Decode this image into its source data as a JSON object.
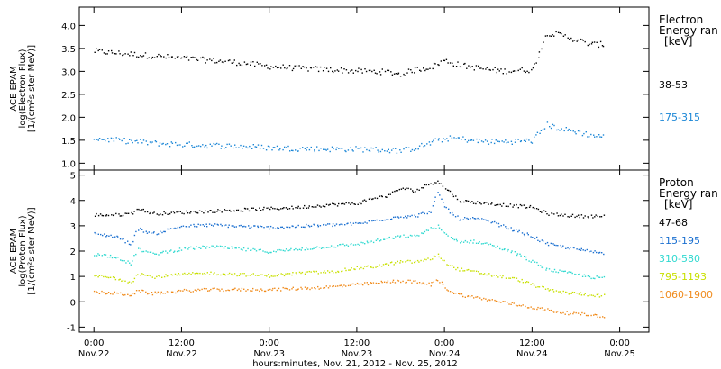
{
  "chart_data": [
    {
      "type": "scatter",
      "title": "",
      "ylabel_lines": [
        "ACE EPAM",
        "log(Electron Flux)",
        "[1/(cm²s ster MeV)]"
      ],
      "ylim": [
        0.85,
        4.4
      ],
      "yticks": [
        1.0,
        1.5,
        2.0,
        2.5,
        3.0,
        3.5,
        4.0
      ],
      "yticklabels": [
        "1.0",
        "1.5",
        "2.0",
        "2.5",
        "3.0",
        "3.5",
        "4.0"
      ],
      "legend": {
        "title_lines": [
          "Electron",
          "Energy ran",
          "[keV]"
        ],
        "placement": "right"
      },
      "series": [
        {
          "name": "38-53",
          "color": "#000000",
          "x": [
            0,
            4,
            8,
            12,
            16,
            20,
            24,
            28,
            32,
            36,
            40,
            42,
            44,
            46,
            48,
            50,
            52,
            54,
            56,
            60,
            62,
            64,
            66,
            68,
            70
          ],
          "y": [
            3.45,
            3.4,
            3.35,
            3.3,
            3.25,
            3.2,
            3.12,
            3.08,
            3.05,
            3.02,
            3.0,
            2.95,
            3.05,
            3.1,
            3.25,
            3.15,
            3.1,
            3.05,
            3.02,
            3.05,
            3.85,
            3.8,
            3.7,
            3.6,
            3.6
          ]
        },
        {
          "name": "175-315",
          "color": "#1a86d6",
          "x": [
            0,
            4,
            8,
            12,
            16,
            20,
            24,
            28,
            32,
            36,
            40,
            42,
            44,
            46,
            48,
            50,
            52,
            54,
            56,
            60,
            62,
            64,
            66,
            68,
            70
          ],
          "y": [
            1.55,
            1.5,
            1.45,
            1.42,
            1.4,
            1.38,
            1.35,
            1.33,
            1.32,
            1.32,
            1.3,
            1.28,
            1.35,
            1.45,
            1.55,
            1.55,
            1.5,
            1.48,
            1.48,
            1.5,
            1.85,
            1.75,
            1.7,
            1.62,
            1.58
          ]
        }
      ]
    },
    {
      "type": "scatter",
      "title": "",
      "ylabel_lines": [
        "ACE EPAM",
        "log(Proton Flux)",
        "[1/(cm²s ster MeV)]"
      ],
      "ylim": [
        -1.2,
        5.2
      ],
      "yticks": [
        -1,
        0,
        1,
        2,
        3,
        4,
        5
      ],
      "yticklabels": [
        "-1",
        "0",
        "1",
        "2",
        "3",
        "4",
        "5"
      ],
      "xlabel": "hours:minutes, Nov. 21, 2012 - Nov. 25, 2012",
      "xlim": [
        -2,
        76
      ],
      "xticks": [
        0,
        12,
        24,
        36,
        48,
        60,
        72
      ],
      "xticklabels": [
        [
          "0:00",
          "Nov.22"
        ],
        [
          "12:00",
          "Nov.22"
        ],
        [
          "0:00",
          "Nov.23"
        ],
        [
          "12:00",
          "Nov.23"
        ],
        [
          "0:00",
          "Nov.24"
        ],
        [
          "12:00",
          "Nov.24"
        ],
        [
          "0:00",
          "Nov.25"
        ]
      ],
      "legend": {
        "title_lines": [
          "Proton",
          "Energy ran",
          "[keV]"
        ],
        "placement": "right"
      },
      "series": [
        {
          "name": "47-68",
          "color": "#000000",
          "x": [
            0,
            3,
            5,
            6,
            8,
            12,
            16,
            20,
            24,
            28,
            32,
            36,
            38,
            40,
            42,
            44,
            46,
            47,
            48,
            49,
            50,
            52,
            54,
            56,
            58,
            60,
            62,
            64,
            66,
            68,
            70
          ],
          "y": [
            3.45,
            3.45,
            3.5,
            3.7,
            3.5,
            3.55,
            3.6,
            3.65,
            3.7,
            3.75,
            3.85,
            3.9,
            4.1,
            4.2,
            4.5,
            4.4,
            4.7,
            4.8,
            4.5,
            4.3,
            4.0,
            3.95,
            3.9,
            3.85,
            3.8,
            3.75,
            3.5,
            3.45,
            3.4,
            3.4,
            3.4
          ]
        },
        {
          "name": "115-195",
          "color": "#1a6fd0",
          "x": [
            0,
            3,
            5,
            6,
            8,
            12,
            16,
            20,
            24,
            28,
            32,
            36,
            38,
            40,
            42,
            44,
            46,
            47,
            48,
            49,
            50,
            52,
            54,
            56,
            58,
            60,
            62,
            64,
            66,
            68,
            70
          ],
          "y": [
            2.7,
            2.6,
            2.3,
            2.9,
            2.7,
            3.0,
            3.05,
            3.0,
            2.95,
            3.0,
            3.05,
            3.1,
            3.2,
            3.3,
            3.4,
            3.4,
            3.6,
            4.3,
            3.8,
            3.5,
            3.3,
            3.3,
            3.2,
            3.0,
            2.8,
            2.6,
            2.3,
            2.2,
            2.1,
            2.0,
            1.95
          ]
        },
        {
          "name": "310-580",
          "color": "#2fd9d0",
          "x": [
            0,
            3,
            5,
            6,
            8,
            12,
            16,
            20,
            24,
            28,
            32,
            36,
            38,
            40,
            42,
            44,
            46,
            47,
            48,
            49,
            50,
            52,
            54,
            56,
            58,
            60,
            62,
            64,
            66,
            68,
            70
          ],
          "y": [
            1.9,
            1.8,
            1.5,
            2.1,
            1.9,
            2.1,
            2.2,
            2.1,
            2.0,
            2.1,
            2.2,
            2.3,
            2.4,
            2.5,
            2.6,
            2.6,
            2.9,
            3.0,
            2.7,
            2.5,
            2.4,
            2.4,
            2.3,
            2.1,
            1.9,
            1.6,
            1.3,
            1.2,
            1.1,
            1.0,
            0.95
          ]
        },
        {
          "name": "795-1193",
          "color": "#c8e000",
          "x": [
            0,
            3,
            5,
            6,
            8,
            12,
            16,
            20,
            24,
            28,
            32,
            36,
            38,
            40,
            42,
            44,
            46,
            47,
            48,
            49,
            50,
            52,
            54,
            56,
            58,
            60,
            62,
            64,
            66,
            68,
            70
          ],
          "y": [
            1.05,
            0.95,
            0.8,
            1.15,
            1.0,
            1.1,
            1.15,
            1.1,
            1.05,
            1.15,
            1.2,
            1.35,
            1.4,
            1.5,
            1.6,
            1.6,
            1.7,
            1.9,
            1.6,
            1.4,
            1.3,
            1.2,
            1.1,
            1.0,
            0.9,
            0.7,
            0.5,
            0.4,
            0.35,
            0.3,
            0.25
          ]
        },
        {
          "name": "1060-1900",
          "color": "#f08a1a",
          "x": [
            0,
            3,
            5,
            6,
            8,
            12,
            16,
            20,
            24,
            28,
            32,
            36,
            38,
            40,
            42,
            44,
            46,
            47,
            48,
            49,
            50,
            52,
            54,
            56,
            58,
            60,
            62,
            64,
            66,
            68,
            70
          ],
          "y": [
            0.4,
            0.35,
            0.3,
            0.45,
            0.35,
            0.45,
            0.5,
            0.5,
            0.5,
            0.55,
            0.6,
            0.7,
            0.75,
            0.8,
            0.85,
            0.8,
            0.7,
            0.9,
            0.6,
            0.4,
            0.3,
            0.2,
            0.1,
            0.0,
            -0.1,
            -0.2,
            -0.3,
            -0.4,
            -0.45,
            -0.5,
            -0.55
          ]
        }
      ]
    }
  ]
}
